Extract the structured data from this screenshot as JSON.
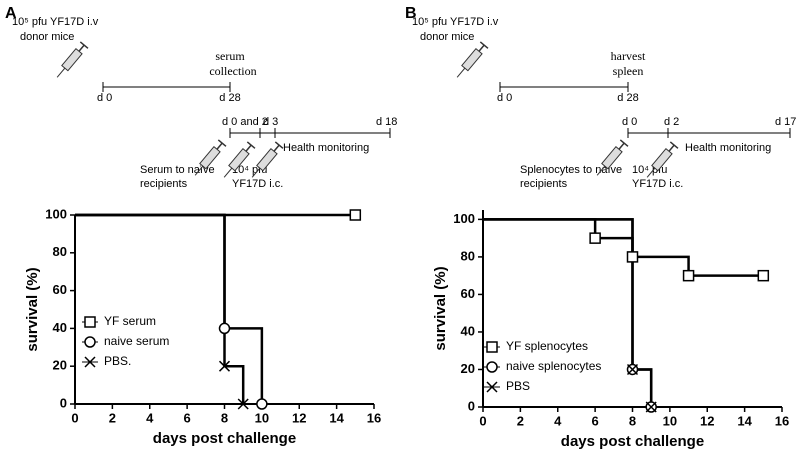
{
  "chart_data": [
    {
      "type": "step",
      "panel_label": "A",
      "xlabel": "days post challenge",
      "ylabel": "survival (%)",
      "xlim": [
        0,
        16
      ],
      "xticks": [
        0,
        2,
        4,
        6,
        8,
        10,
        12,
        14,
        16
      ],
      "ylim": [
        0,
        100
      ],
      "yticks": [
        0,
        20,
        40,
        60,
        80,
        100
      ],
      "legend": "lower left",
      "series": [
        {
          "name": "YF serum",
          "color": "#000000",
          "marker": "square",
          "x": [
            0,
            15
          ],
          "values": [
            100,
            100
          ]
        },
        {
          "name": "naive  serum",
          "color": "#000000",
          "marker": "circle",
          "x": [
            0,
            8,
            10
          ],
          "values": [
            100,
            40,
            0
          ]
        },
        {
          "name": "PBS.",
          "color": "#000000",
          "marker": "x",
          "x": [
            0,
            8,
            9
          ],
          "values": [
            100,
            20,
            0
          ]
        }
      ],
      "annotations": [
        "10⁵ pfu YF17D  i.v",
        "donor mice",
        "serum",
        "collection",
        "d 0",
        "d 28",
        "d 0 and 2",
        "d 3",
        "d 18",
        "Health monitoring",
        "Serum to  naïve",
        "recipients",
        "10⁴ pfu",
        "YF17D  i.c."
      ]
    },
    {
      "type": "step",
      "panel_label": "B",
      "xlabel": "days post challenge",
      "ylabel": "survival (%)",
      "xlim": [
        0,
        16
      ],
      "xticks": [
        0,
        2,
        4,
        6,
        8,
        10,
        12,
        14,
        16
      ],
      "ylim": [
        0,
        105
      ],
      "yticks": [
        0,
        20,
        40,
        60,
        80,
        100
      ],
      "legend": "lower left",
      "series": [
        {
          "name": "YF splenocytes",
          "color": "#000000",
          "marker": "square",
          "x": [
            0,
            6,
            8,
            11,
            15
          ],
          "values": [
            100,
            90,
            80,
            70,
            70
          ]
        },
        {
          "name": "naive  splenocytes",
          "color": "#000000",
          "marker": "circle",
          "x": [
            0,
            8,
            9
          ],
          "values": [
            100,
            20,
            0
          ]
        },
        {
          "name": "PBS",
          "color": "#000000",
          "marker": "x",
          "x": [
            0,
            8,
            9
          ],
          "values": [
            100,
            20,
            0
          ]
        }
      ],
      "annotations": [
        "10⁵ pfu YF17D  i.v",
        "donor mice",
        "harvest",
        "spleen",
        "d 0",
        "d 28",
        "d 0",
        "d 2",
        "d 17",
        "Health monitoring",
        "Splenocytes to  naïve",
        "recipients",
        "10⁴ pfu",
        "YF17D  i.c."
      ]
    }
  ]
}
